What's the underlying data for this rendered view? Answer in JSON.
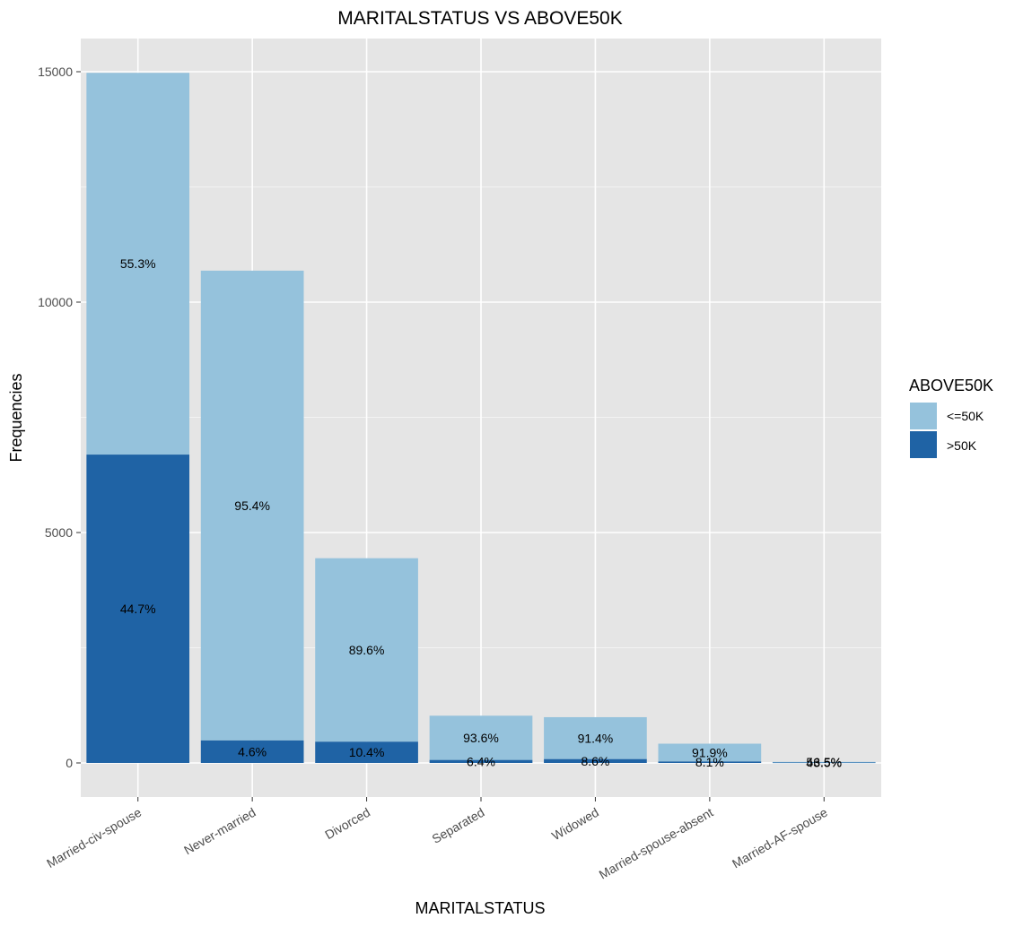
{
  "chart_data": {
    "type": "bar",
    "stacked": true,
    "title": "MARITALSTATUS VS ABOVE50K",
    "xlabel": "MARITALSTATUS",
    "ylabel": "Frequencies",
    "ylim": [
      0,
      15000
    ],
    "yticks": [
      0,
      5000,
      10000,
      15000
    ],
    "ytick_labels": [
      "0",
      "5000",
      "10000",
      "15000"
    ],
    "grid": true,
    "legend_position": "right",
    "categories": [
      "Married-civ-spouse",
      "Never-married",
      "Divorced",
      "Separated",
      "Widowed",
      "Married-spouse-absent",
      "Married-AF-spouse"
    ],
    "series": [
      {
        "name": ">50K",
        "color": "#1f63a5",
        "values": [
          6692,
          491,
          463,
          66,
          85,
          34,
          10
        ],
        "labels": [
          "44.7%",
          "4.6%",
          "10.4%",
          "6.4%",
          "8.6%",
          "8.1%",
          "43.5%"
        ]
      },
      {
        "name": "<=50K",
        "color": "#95c2dc",
        "values": [
          8284,
          10192,
          3980,
          959,
          908,
          384,
          13
        ],
        "labels": [
          "55.3%",
          "95.4%",
          "89.6%",
          "93.6%",
          "91.4%",
          "91.9%",
          "56.5%"
        ]
      }
    ],
    "legend": {
      "title": "ABOVE50K",
      "entries": [
        {
          "label": "<=50K",
          "color": "#95c2dc"
        },
        {
          "label": ">50K",
          "color": "#1f63a5"
        }
      ]
    }
  }
}
